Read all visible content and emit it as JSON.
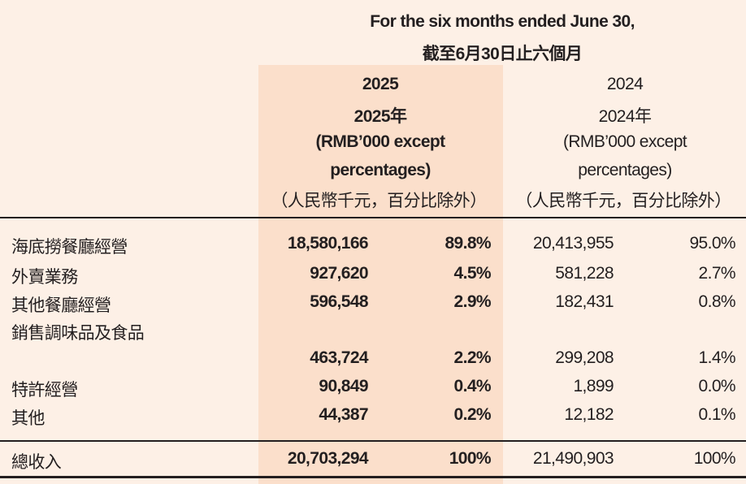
{
  "header": {
    "period_en": "For the six months ended June 30,",
    "period_zh": "截至6月30日止六個月",
    "columns": [
      {
        "year": "2025",
        "year_zh": "2025年",
        "unit_line1": "(RMB’000 except",
        "unit_line2": "percentages)",
        "unit_zh": "（人民幣千元，百分比除外）"
      },
      {
        "year": "2024",
        "year_zh": "2024年",
        "unit_line1": "(RMB’000 except",
        "unit_line2": "percentages)",
        "unit_zh": "（人民幣千元，百分比除外）"
      }
    ]
  },
  "rows": [
    {
      "label": "海底撈餐廳經營",
      "v2025": "18,580,166",
      "p2025": "89.8%",
      "v2024": "20,413,955",
      "p2024": "95.0%"
    },
    {
      "label": "外賣業務",
      "v2025": "927,620",
      "p2025": "4.5%",
      "v2024": "581,228",
      "p2024": "2.7%"
    },
    {
      "label": "其他餐廳經營",
      "v2025": "596,548",
      "p2025": "2.9%",
      "v2024": "182,431",
      "p2024": "0.8%"
    },
    {
      "label": "銷售調味品及食品",
      "v2025": "463,724",
      "p2025": "2.2%",
      "v2024": "299,208",
      "p2024": "1.4%"
    },
    {
      "label": "特許經營",
      "v2025": "90,849",
      "p2025": "0.4%",
      "v2024": "1,899",
      "p2024": "0.0%"
    },
    {
      "label": "其他",
      "v2025": "44,387",
      "p2025": "0.2%",
      "v2024": "12,182",
      "p2024": "0.1%"
    }
  ],
  "total": {
    "label": "總收入",
    "v2025": "20,703,294",
    "p2025": "100%",
    "v2024": "21,490,903",
    "p2024": "100%"
  },
  "colors": {
    "background": "#fdf0e6",
    "highlight": "#fbdfcb",
    "text": "#231f20"
  }
}
